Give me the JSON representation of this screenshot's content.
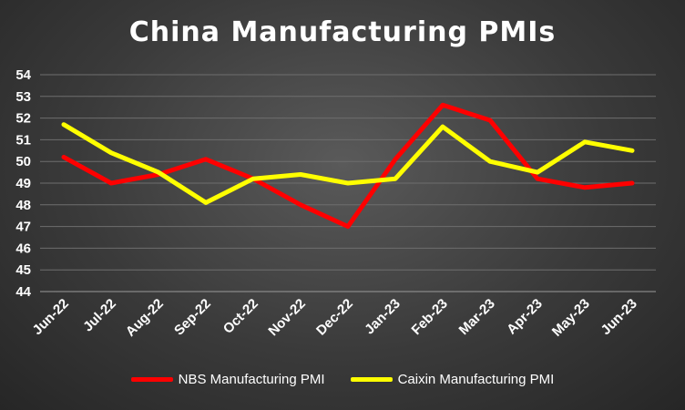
{
  "chart_data": {
    "type": "line",
    "title": "China Manufacturing PMIs",
    "categories": [
      "Jun-22",
      "Jul-22",
      "Aug-22",
      "Sep-22",
      "Oct-22",
      "Nov-22",
      "Dec-22",
      "Jan-23",
      "Feb-23",
      "Mar-23",
      "Apr-23",
      "May-23",
      "Jun-23"
    ],
    "ylim": [
      44,
      54
    ],
    "yticks": [
      "44",
      "45",
      "46",
      "47",
      "48",
      "49",
      "50",
      "51",
      "52",
      "53",
      "54"
    ],
    "grid": true,
    "legend_position": "bottom",
    "series": [
      {
        "name": "NBS Manufacturing PMI",
        "color": "#ff0000",
        "values": [
          50.2,
          49.0,
          49.4,
          50.1,
          49.2,
          48.0,
          47.0,
          50.1,
          52.6,
          51.9,
          49.2,
          48.8,
          49.0
        ]
      },
      {
        "name": "Caixin Manufacturing PMI",
        "color": "#ffff00",
        "values": [
          51.7,
          50.4,
          49.5,
          48.1,
          49.2,
          49.4,
          49.0,
          49.2,
          51.6,
          50.0,
          49.5,
          50.9,
          50.5
        ]
      }
    ]
  }
}
